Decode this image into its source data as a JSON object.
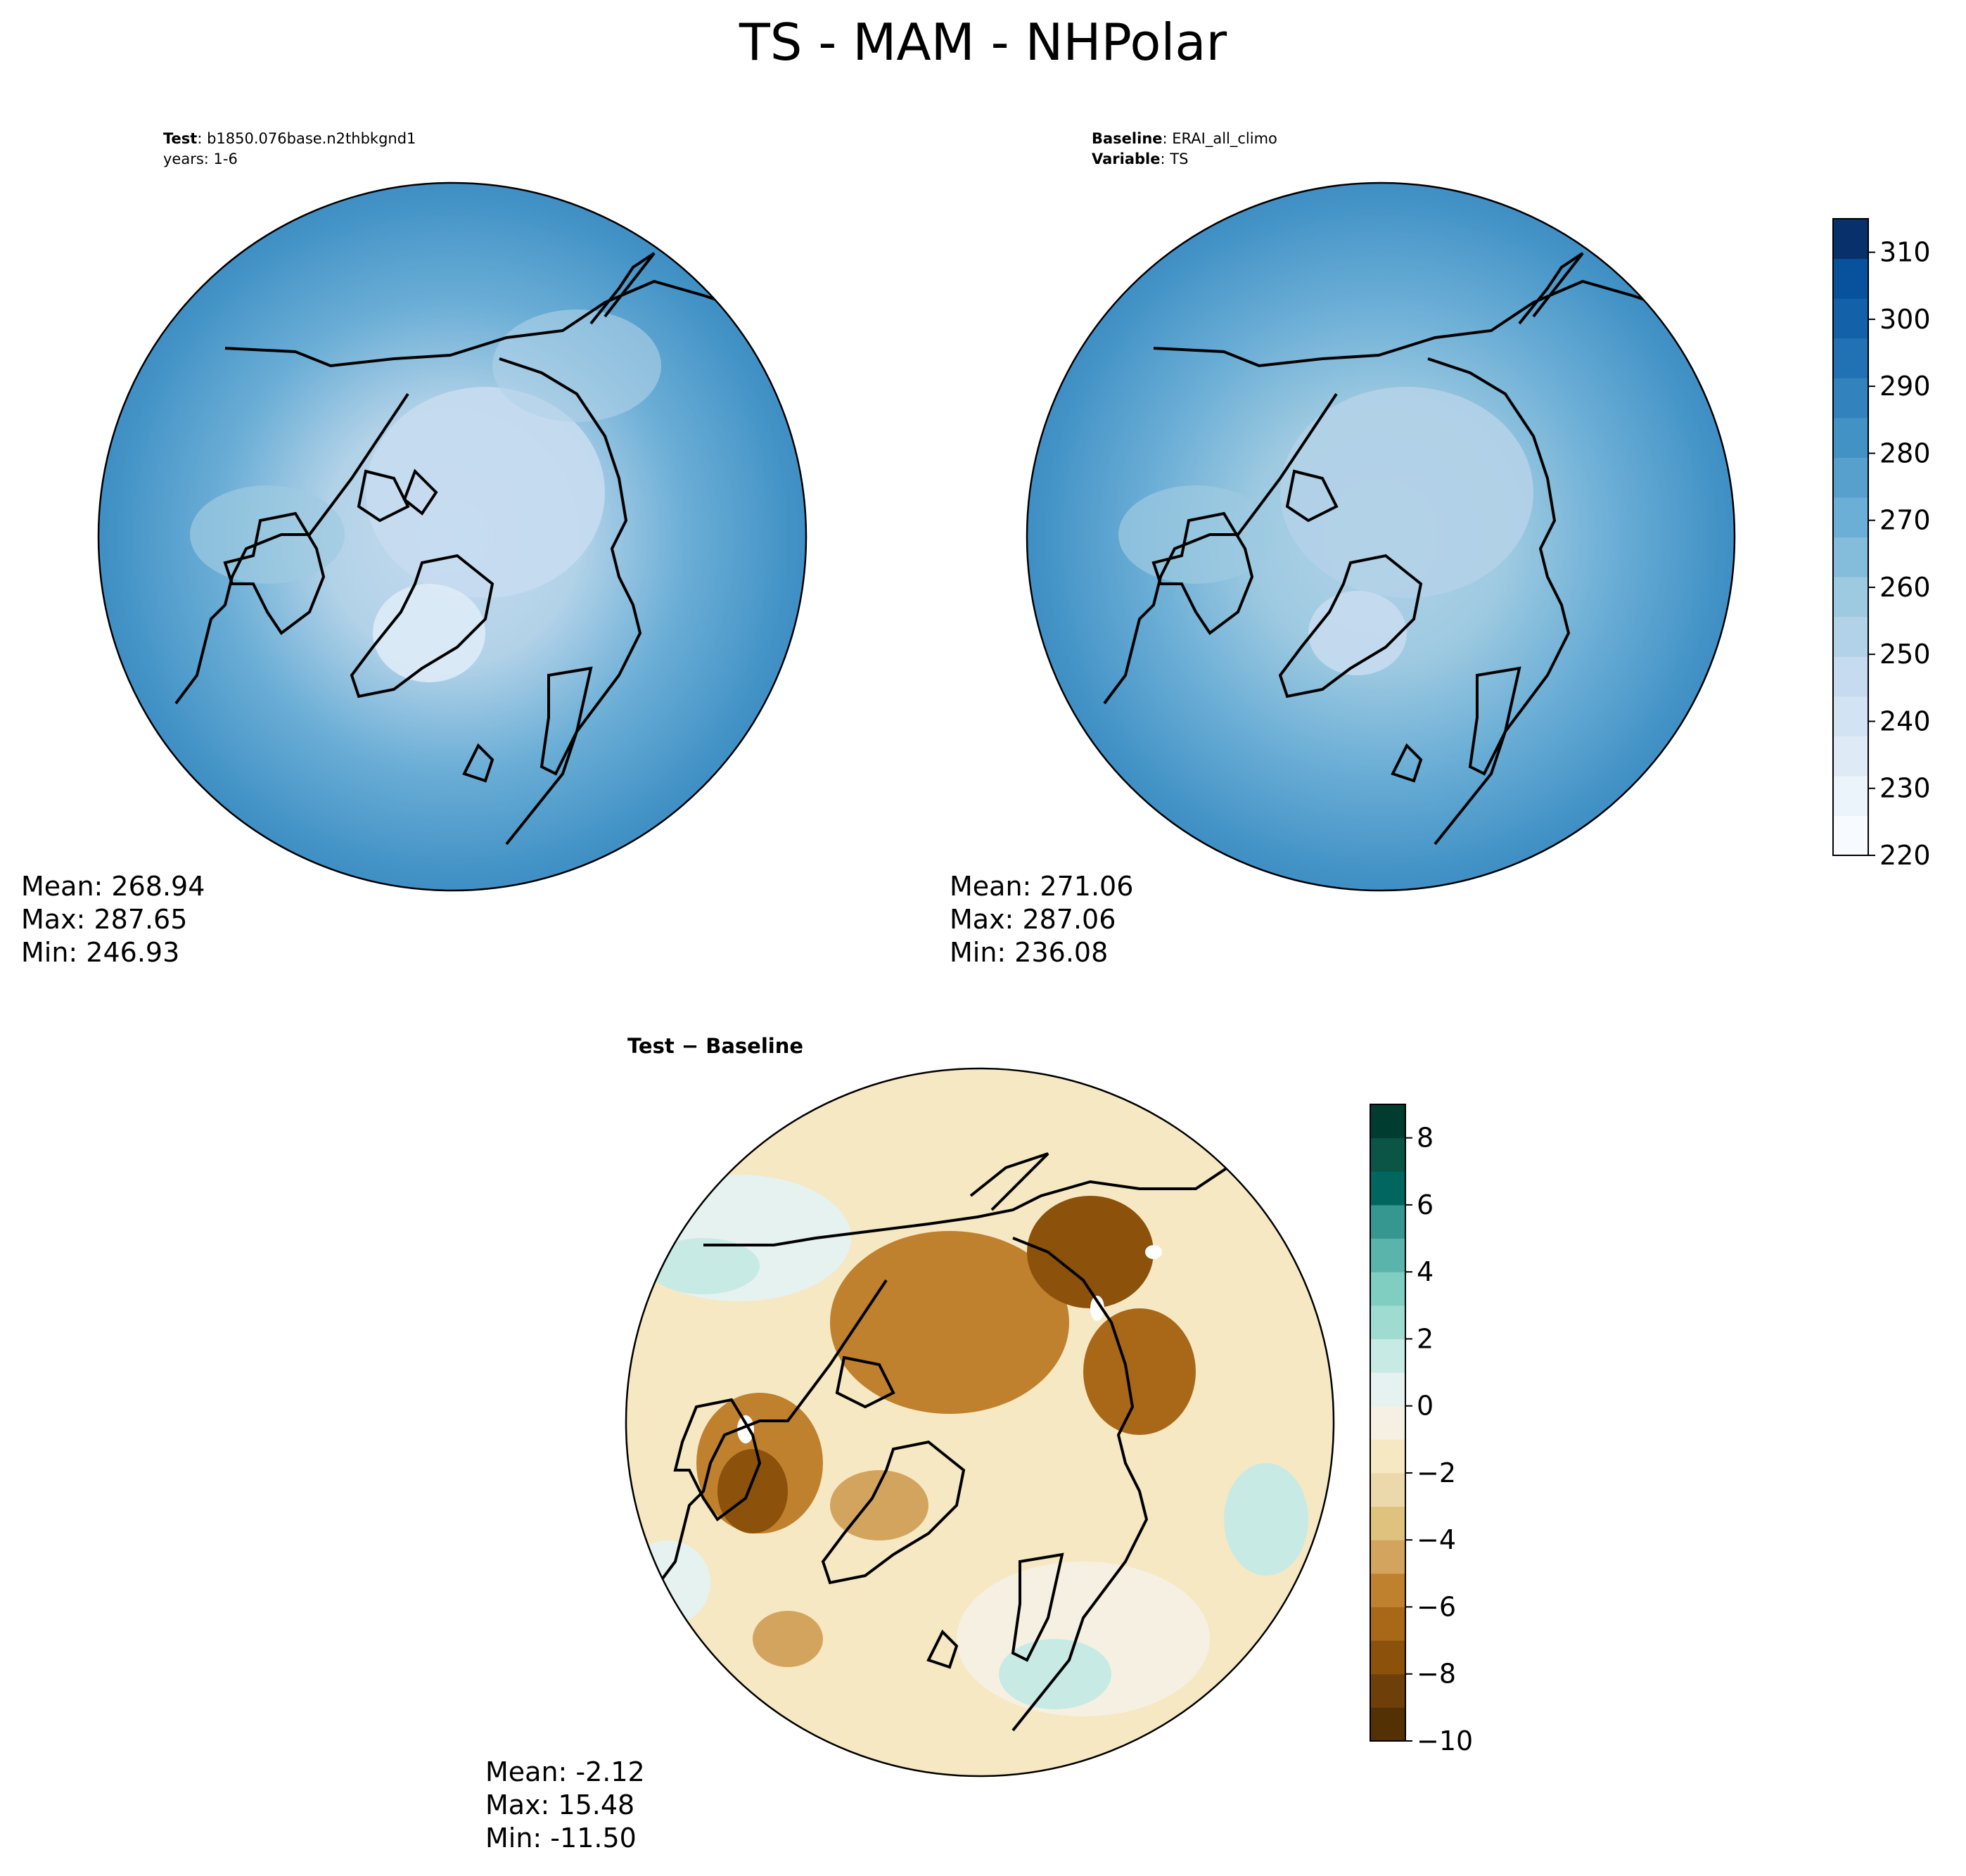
{
  "figure": {
    "title": "TS - MAM - NHPolar"
  },
  "panels": {
    "test": {
      "label_bold": "Test",
      "label_sep": ":",
      "label_value": "b1850.076base.n2thbkgnd1",
      "label_line2": "years: 1-6",
      "mean": "Mean: 268.94",
      "max": "Max: 287.65",
      "min": "Min: 246.93"
    },
    "baseline": {
      "label_bold": "Baseline",
      "label_sep": ":",
      "label_value": "ERAI_all_climo",
      "label2_bold": "Variable",
      "label2_sep": ":",
      "label2_value": "TS",
      "mean": "Mean: 271.06",
      "max": "Max: 287.06",
      "min": "Min: 236.08"
    },
    "diff": {
      "title": "Test − Baseline",
      "mean": "Mean: -2.12",
      "max": "Max: 15.48",
      "min": "Min: -11.50"
    }
  },
  "colors": {
    "field_colormap": [
      "#f7fbff",
      "#ebf3fb",
      "#deebf7",
      "#d2e3f3",
      "#c6dbef",
      "#b2d2e8",
      "#9ecae1",
      "#84bcdb",
      "#6baed6",
      "#57a0ce",
      "#4292c6",
      "#3282be",
      "#2171b5",
      "#1361a9",
      "#08519c",
      "#08306b"
    ],
    "diff_colormap": [
      "#543005",
      "#6f3f09",
      "#8c510a",
      "#a86818",
      "#bf812d",
      "#d3a45e",
      "#dfc27d",
      "#ecd9ab",
      "#f6e8c3",
      "#f5f0e2",
      "#e6f2f0",
      "#c7eae5",
      "#a0dbd1",
      "#80cdc1",
      "#5ab4ac",
      "#35978f",
      "#01665e",
      "#0b5546",
      "#003c30"
    ],
    "coastline": "#000000",
    "ocean_test": "#3f8fc5",
    "ocean_base": "#3a8cc4"
  },
  "chart_data": [
    {
      "type": "heatmap",
      "name": "Test",
      "projection": "north polar stereographic",
      "title": "",
      "colorbar": "shared",
      "stats": {
        "mean": 268.94,
        "max": 287.65,
        "min": 246.93
      }
    },
    {
      "type": "heatmap",
      "name": "Baseline",
      "projection": "north polar stereographic",
      "colorbar": {
        "range": [
          220,
          315
        ],
        "ticks": [
          "220",
          "230",
          "240",
          "250",
          "260",
          "270",
          "280",
          "290",
          "300",
          "310"
        ],
        "levels": 16,
        "colormap": "Blues",
        "placement": "right"
      },
      "stats": {
        "mean": 271.06,
        "max": 287.06,
        "min": 236.08
      }
    },
    {
      "type": "heatmap",
      "name": "Test − Baseline",
      "projection": "north polar stereographic",
      "colorbar": {
        "range": [
          -10,
          9
        ],
        "ticks": [
          "−10",
          "−8",
          "−6",
          "−4",
          "−2",
          "0",
          "2",
          "4",
          "6",
          "8"
        ],
        "levels": 19,
        "colormap": "BrBG",
        "placement": "right"
      },
      "stats": {
        "mean": -2.12,
        "max": 15.48,
        "min": -11.5
      }
    }
  ]
}
